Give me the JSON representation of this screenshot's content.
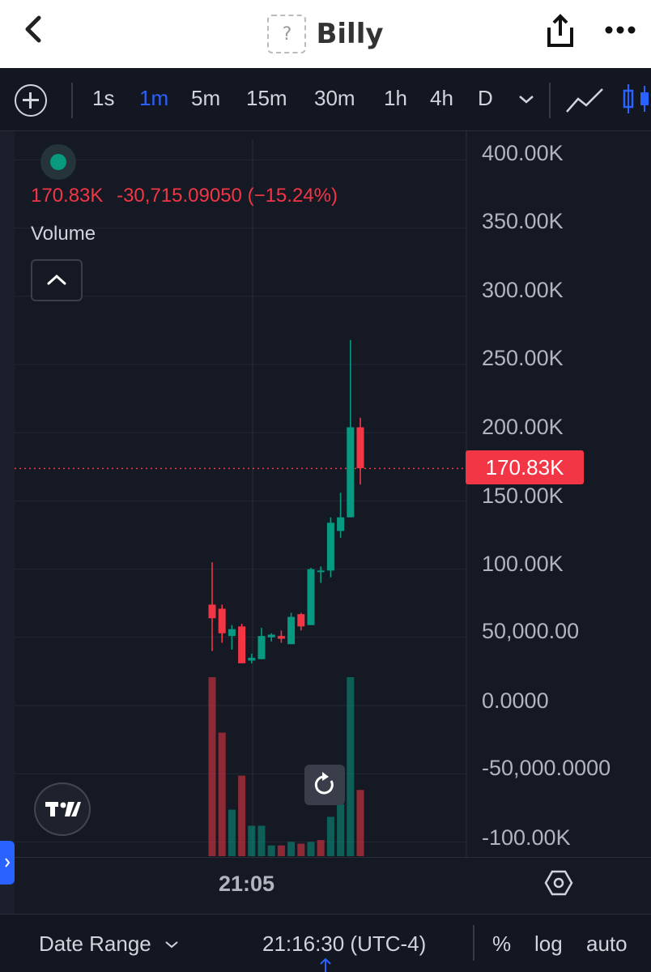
{
  "header": {
    "title": "Billy",
    "token_icon_text": "?",
    "back_icon": "chevron-left-icon",
    "share_icon": "share-icon",
    "more_icon": "more-horizontal-icon"
  },
  "toolbar": {
    "timeframes": [
      "1s",
      "1m",
      "5m",
      "15m",
      "30m",
      "1h",
      "4h",
      "D"
    ],
    "active_timeframe": "1m"
  },
  "legend": {
    "value": "170.83K",
    "change": "-30,715.09050",
    "change_pct": "(−15.24%)",
    "volume_label": "Volume"
  },
  "price_axis": {
    "labels": [
      "400.00K",
      "350.00K",
      "300.00K",
      "250.00K",
      "200.00K",
      "150.00K",
      "100.00K",
      "50,000.00",
      "0.0000",
      "-50,000.0000",
      "-100.00K"
    ],
    "current_price_tag": "170.83K"
  },
  "time_axis": {
    "label": "21:05"
  },
  "bottom_bar": {
    "date_range": "Date Range",
    "clock": "21:16:30 (UTC-4)",
    "percent": "%",
    "log": "log",
    "auto": "auto"
  },
  "colors": {
    "up": "#089981",
    "down": "#f23645",
    "background": "#151924",
    "text": "#d1d4dc",
    "accent": "#2962ff"
  },
  "chart_data": {
    "type": "candlestick",
    "ylim": [
      -100000,
      400000
    ],
    "candles": [
      {
        "o": 71000,
        "h": 102000,
        "l": 37000,
        "c": 61000
      },
      {
        "o": 68000,
        "h": 71000,
        "l": 43000,
        "c": 50000
      },
      {
        "o": 48000,
        "h": 56000,
        "l": 38000,
        "c": 53000
      },
      {
        "o": 55000,
        "h": 57000,
        "l": 32000,
        "c": 28000
      },
      {
        "o": 30000,
        "h": 35000,
        "l": 28000,
        "c": 32000
      },
      {
        "o": 31000,
        "h": 54000,
        "l": 31000,
        "c": 48000
      },
      {
        "o": 47000,
        "h": 50000,
        "l": 44000,
        "c": 49000
      },
      {
        "o": 48000,
        "h": 52000,
        "l": 43000,
        "c": 46000
      },
      {
        "o": 42000,
        "h": 65000,
        "l": 42000,
        "c": 62000
      },
      {
        "o": 64000,
        "h": 65000,
        "l": 52000,
        "c": 55000
      },
      {
        "o": 56000,
        "h": 98000,
        "l": 56000,
        "c": 97000
      },
      {
        "o": 95000,
        "h": 99000,
        "l": 87000,
        "c": 96000
      },
      {
        "o": 96000,
        "h": 135000,
        "l": 91000,
        "c": 131000
      },
      {
        "o": 125000,
        "h": 153000,
        "l": 120000,
        "c": 135000
      },
      {
        "o": 135000,
        "h": 265000,
        "l": 135000,
        "c": 201000
      },
      {
        "o": 201000,
        "h": 208000,
        "l": 159000,
        "c": 171000
      }
    ],
    "volume": [
      {
        "v": 100,
        "dir": "down"
      },
      {
        "v": 69,
        "dir": "down"
      },
      {
        "v": 26,
        "dir": "up"
      },
      {
        "v": 45,
        "dir": "down"
      },
      {
        "v": 17,
        "dir": "up"
      },
      {
        "v": 17,
        "dir": "up"
      },
      {
        "v": 6,
        "dir": "up"
      },
      {
        "v": 6,
        "dir": "down"
      },
      {
        "v": 8,
        "dir": "up"
      },
      {
        "v": 7,
        "dir": "down"
      },
      {
        "v": 8,
        "dir": "up"
      },
      {
        "v": 9,
        "dir": "down"
      },
      {
        "v": 22,
        "dir": "up"
      },
      {
        "v": 29,
        "dir": "up"
      },
      {
        "v": 100,
        "dir": "up"
      },
      {
        "v": 37,
        "dir": "down"
      }
    ],
    "current_price": 170830
  }
}
